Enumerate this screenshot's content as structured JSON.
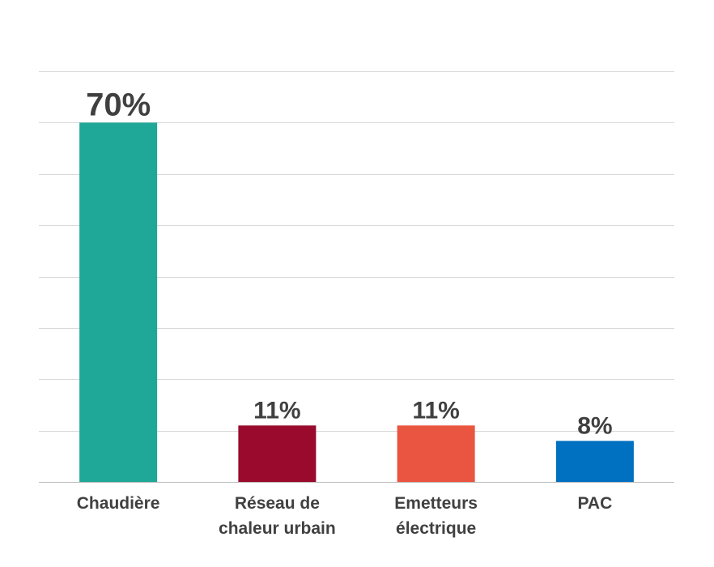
{
  "chart_data": {
    "type": "bar",
    "categories": [
      "Chaudière",
      "Réseau de\nchaleur urbain",
      "Emetteurs\nélectrique",
      "PAC"
    ],
    "values": [
      70,
      11,
      11,
      8
    ],
    "data_labels": [
      "70%",
      "11%",
      "11%",
      "8%"
    ],
    "colors": [
      "#1fa797",
      "#990a2c",
      "#e95540",
      "#0070c0"
    ],
    "ylim": [
      0,
      80
    ],
    "y_tick_step": 10,
    "grid": true,
    "legend": "none",
    "title": "",
    "xlabel": "",
    "ylabel": ""
  }
}
